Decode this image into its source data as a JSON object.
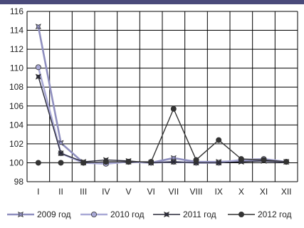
{
  "chart_data": {
    "type": "line",
    "title": "",
    "xlabel": "",
    "ylabel": "",
    "categories": [
      "I",
      "II",
      "III",
      "IV",
      "V",
      "VI",
      "VII",
      "VIII",
      "IX",
      "X",
      "XI",
      "XII"
    ],
    "ylim": [
      98,
      116
    ],
    "yticks": [
      98,
      100,
      102,
      104,
      106,
      108,
      110,
      112,
      114,
      116
    ],
    "grid": true,
    "legend_position": "bottom",
    "series": [
      {
        "name": "2009 год",
        "color": "#8f8fbf",
        "marker": "star",
        "values": [
          114.4,
          102.1,
          100.0,
          100.0,
          100.1,
          100.0,
          100.5,
          100.1,
          100.1,
          100.2,
          100.2,
          100.1
        ]
      },
      {
        "name": "2010 год",
        "color": "#a9a9d6",
        "marker": "circle",
        "values": [
          110.1,
          101.0,
          100.0,
          99.9,
          100.1,
          100.0,
          100.1,
          100.0,
          100.0,
          100.3,
          100.4,
          100.1
        ]
      },
      {
        "name": "2011 год",
        "color": "#2a2a3a",
        "marker": "star",
        "values": [
          109.1,
          101.0,
          100.1,
          100.3,
          100.2,
          100.0,
          100.1,
          100.0,
          100.0,
          100.1,
          100.2,
          100.1
        ]
      },
      {
        "name": "2012 год",
        "color": "#333333",
        "marker": "circle",
        "values": [
          100.0,
          100.0,
          100.0,
          100.1,
          100.1,
          100.1,
          105.7,
          100.3,
          102.4,
          100.4,
          100.3,
          100.1
        ]
      }
    ]
  }
}
